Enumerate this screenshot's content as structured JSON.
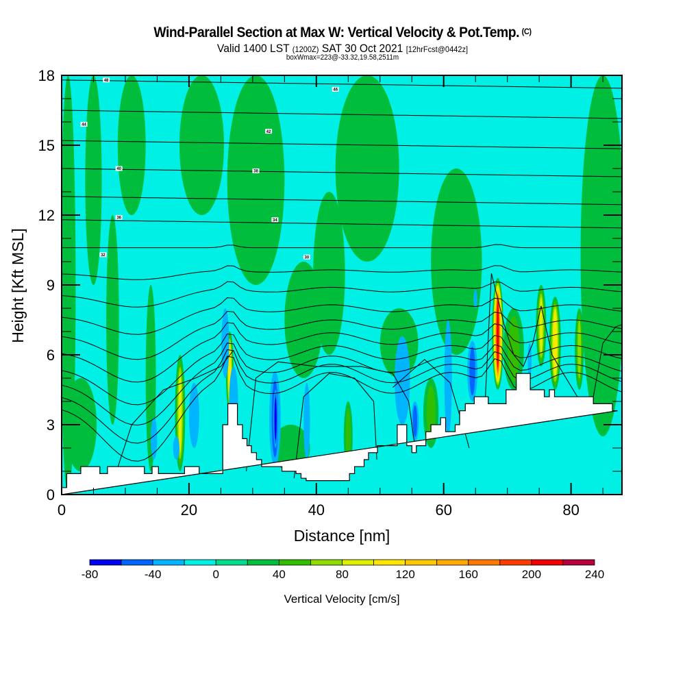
{
  "header": {
    "title": "Wind-Parallel Section at Max W: Vertical Velocity & Pot.Temp.",
    "title_mark": "(C)",
    "valid_prefix": "Valid 1400 LST",
    "valid_utc": "(1200Z)",
    "valid_date": "SAT 30 Oct 2021",
    "forecast": "[12hrFcst@0442z]",
    "boxwmax": "boxWmax=223@-33.32,19.58,2511m"
  },
  "chart_data": {
    "type": "heatmap",
    "title": "Wind-Parallel Section at Max W: Vertical Velocity & Pot.Temp.",
    "xlabel": "Distance [nm]",
    "ylabel": "Height [Kft MSL]",
    "xlim": [
      0,
      88
    ],
    "ylim": [
      0,
      18
    ],
    "x_ticks": [
      "0",
      "20",
      "40",
      "60",
      "80"
    ],
    "x_tick_values": [
      0,
      20,
      40,
      60,
      80
    ],
    "x_minor_step": 5,
    "y_ticks": [
      "0",
      "3",
      "6",
      "9",
      "12",
      "15",
      "18"
    ],
    "y_tick_values": [
      0,
      3,
      6,
      9,
      12,
      15,
      18
    ],
    "y_minor_step": 1,
    "colorbar": {
      "title": "Vertical Velocity [cm/s]",
      "levels": [
        -80,
        -60,
        -40,
        -20,
        0,
        20,
        40,
        60,
        80,
        100,
        120,
        140,
        160,
        180,
        200,
        220,
        240
      ],
      "tick_labels": [
        "-80",
        "-40",
        "0",
        "40",
        "80",
        "120",
        "160",
        "200",
        "240"
      ],
      "tick_values": [
        -80,
        -40,
        0,
        40,
        80,
        120,
        160,
        200,
        240
      ],
      "colors": [
        "#0000f0",
        "#0064ff",
        "#00b4ff",
        "#00f0e6",
        "#00dc8c",
        "#00be3c",
        "#32be00",
        "#8cdc00",
        "#dcf000",
        "#ffe600",
        "#ffc800",
        "#ffaa00",
        "#ff7800",
        "#ff3c00",
        "#f00000",
        "#b4003c"
      ]
    },
    "terrain_kft": {
      "x": [
        0,
        0.8,
        0.8,
        3,
        3,
        6,
        6,
        7.2,
        7.2,
        13,
        13,
        14.2,
        14.2,
        15.2,
        15.2,
        19.3,
        19.3,
        21.6,
        21.6,
        25.3,
        25.3,
        26.1,
        26.1,
        27.6,
        27.6,
        28.4,
        28.4,
        29.1,
        29.1,
        29.8,
        29.8,
        30.6,
        30.6,
        31.4,
        31.4,
        32.2,
        32.2,
        34.6,
        34.6,
        36.8,
        36.8,
        37.6,
        37.6,
        38.4,
        38.4,
        39.2,
        39.2,
        45.2,
        45.2,
        46.0,
        46.0,
        47.5,
        47.5,
        48.2,
        48.2,
        49.6,
        49.6,
        52.7,
        52.7,
        54.2,
        54.2,
        55.0,
        55.0,
        55.7,
        55.7,
        57.2,
        57.2,
        58.0,
        58.0,
        59.5,
        59.5,
        60.3,
        60.3,
        61.8,
        61.8,
        62.5,
        62.5,
        63.4,
        63.4,
        64.8,
        64.8,
        67.0,
        67.0,
        69.8,
        69.8,
        71.4,
        71.4,
        73.6,
        73.6,
        75.8,
        75.8,
        76.6,
        76.6,
        77.4,
        77.4,
        79.6,
        79.6,
        83.5,
        83.5,
        86.5,
        86.5,
        87.3,
        87.3,
        88
      ],
      "h": [
        0.3,
        0.3,
        0.9,
        0.9,
        1.2,
        1.2,
        0.9,
        0.9,
        1.2,
        1.2,
        0.9,
        0.9,
        1.2,
        1.2,
        0.9,
        0.9,
        1.2,
        1.2,
        0.9,
        0.9,
        3.0,
        3.0,
        3.9,
        3.9,
        3.0,
        3.0,
        2.4,
        2.4,
        2.1,
        2.1,
        1.8,
        1.8,
        1.5,
        1.5,
        1.2,
        1.2,
        1.2,
        1.2,
        1.0,
        1.0,
        0.9,
        0.9,
        0.7,
        0.7,
        0.6,
        0.6,
        0.6,
        0.6,
        0.9,
        0.9,
        1.2,
        1.2,
        1.5,
        1.5,
        1.8,
        1.8,
        2.1,
        2.1,
        3.0,
        3.0,
        2.1,
        2.1,
        1.8,
        1.8,
        2.1,
        2.1,
        2.7,
        2.7,
        3.0,
        3.0,
        3.3,
        3.3,
        2.7,
        2.7,
        3.0,
        3.0,
        3.6,
        3.6,
        3.9,
        3.9,
        4.2,
        4.2,
        3.9,
        3.9,
        4.5,
        4.5,
        5.2,
        5.2,
        4.5,
        4.5,
        4.2,
        4.2,
        4.5,
        4.5,
        4.2,
        4.2,
        4.2,
        4.2,
        3.9,
        3.9,
        3.6,
        3.6
      ]
    },
    "isentrope_labels": [
      "48",
      "46",
      "44",
      "42",
      "40",
      "38",
      "36",
      "34",
      "32",
      "30"
    ]
  }
}
